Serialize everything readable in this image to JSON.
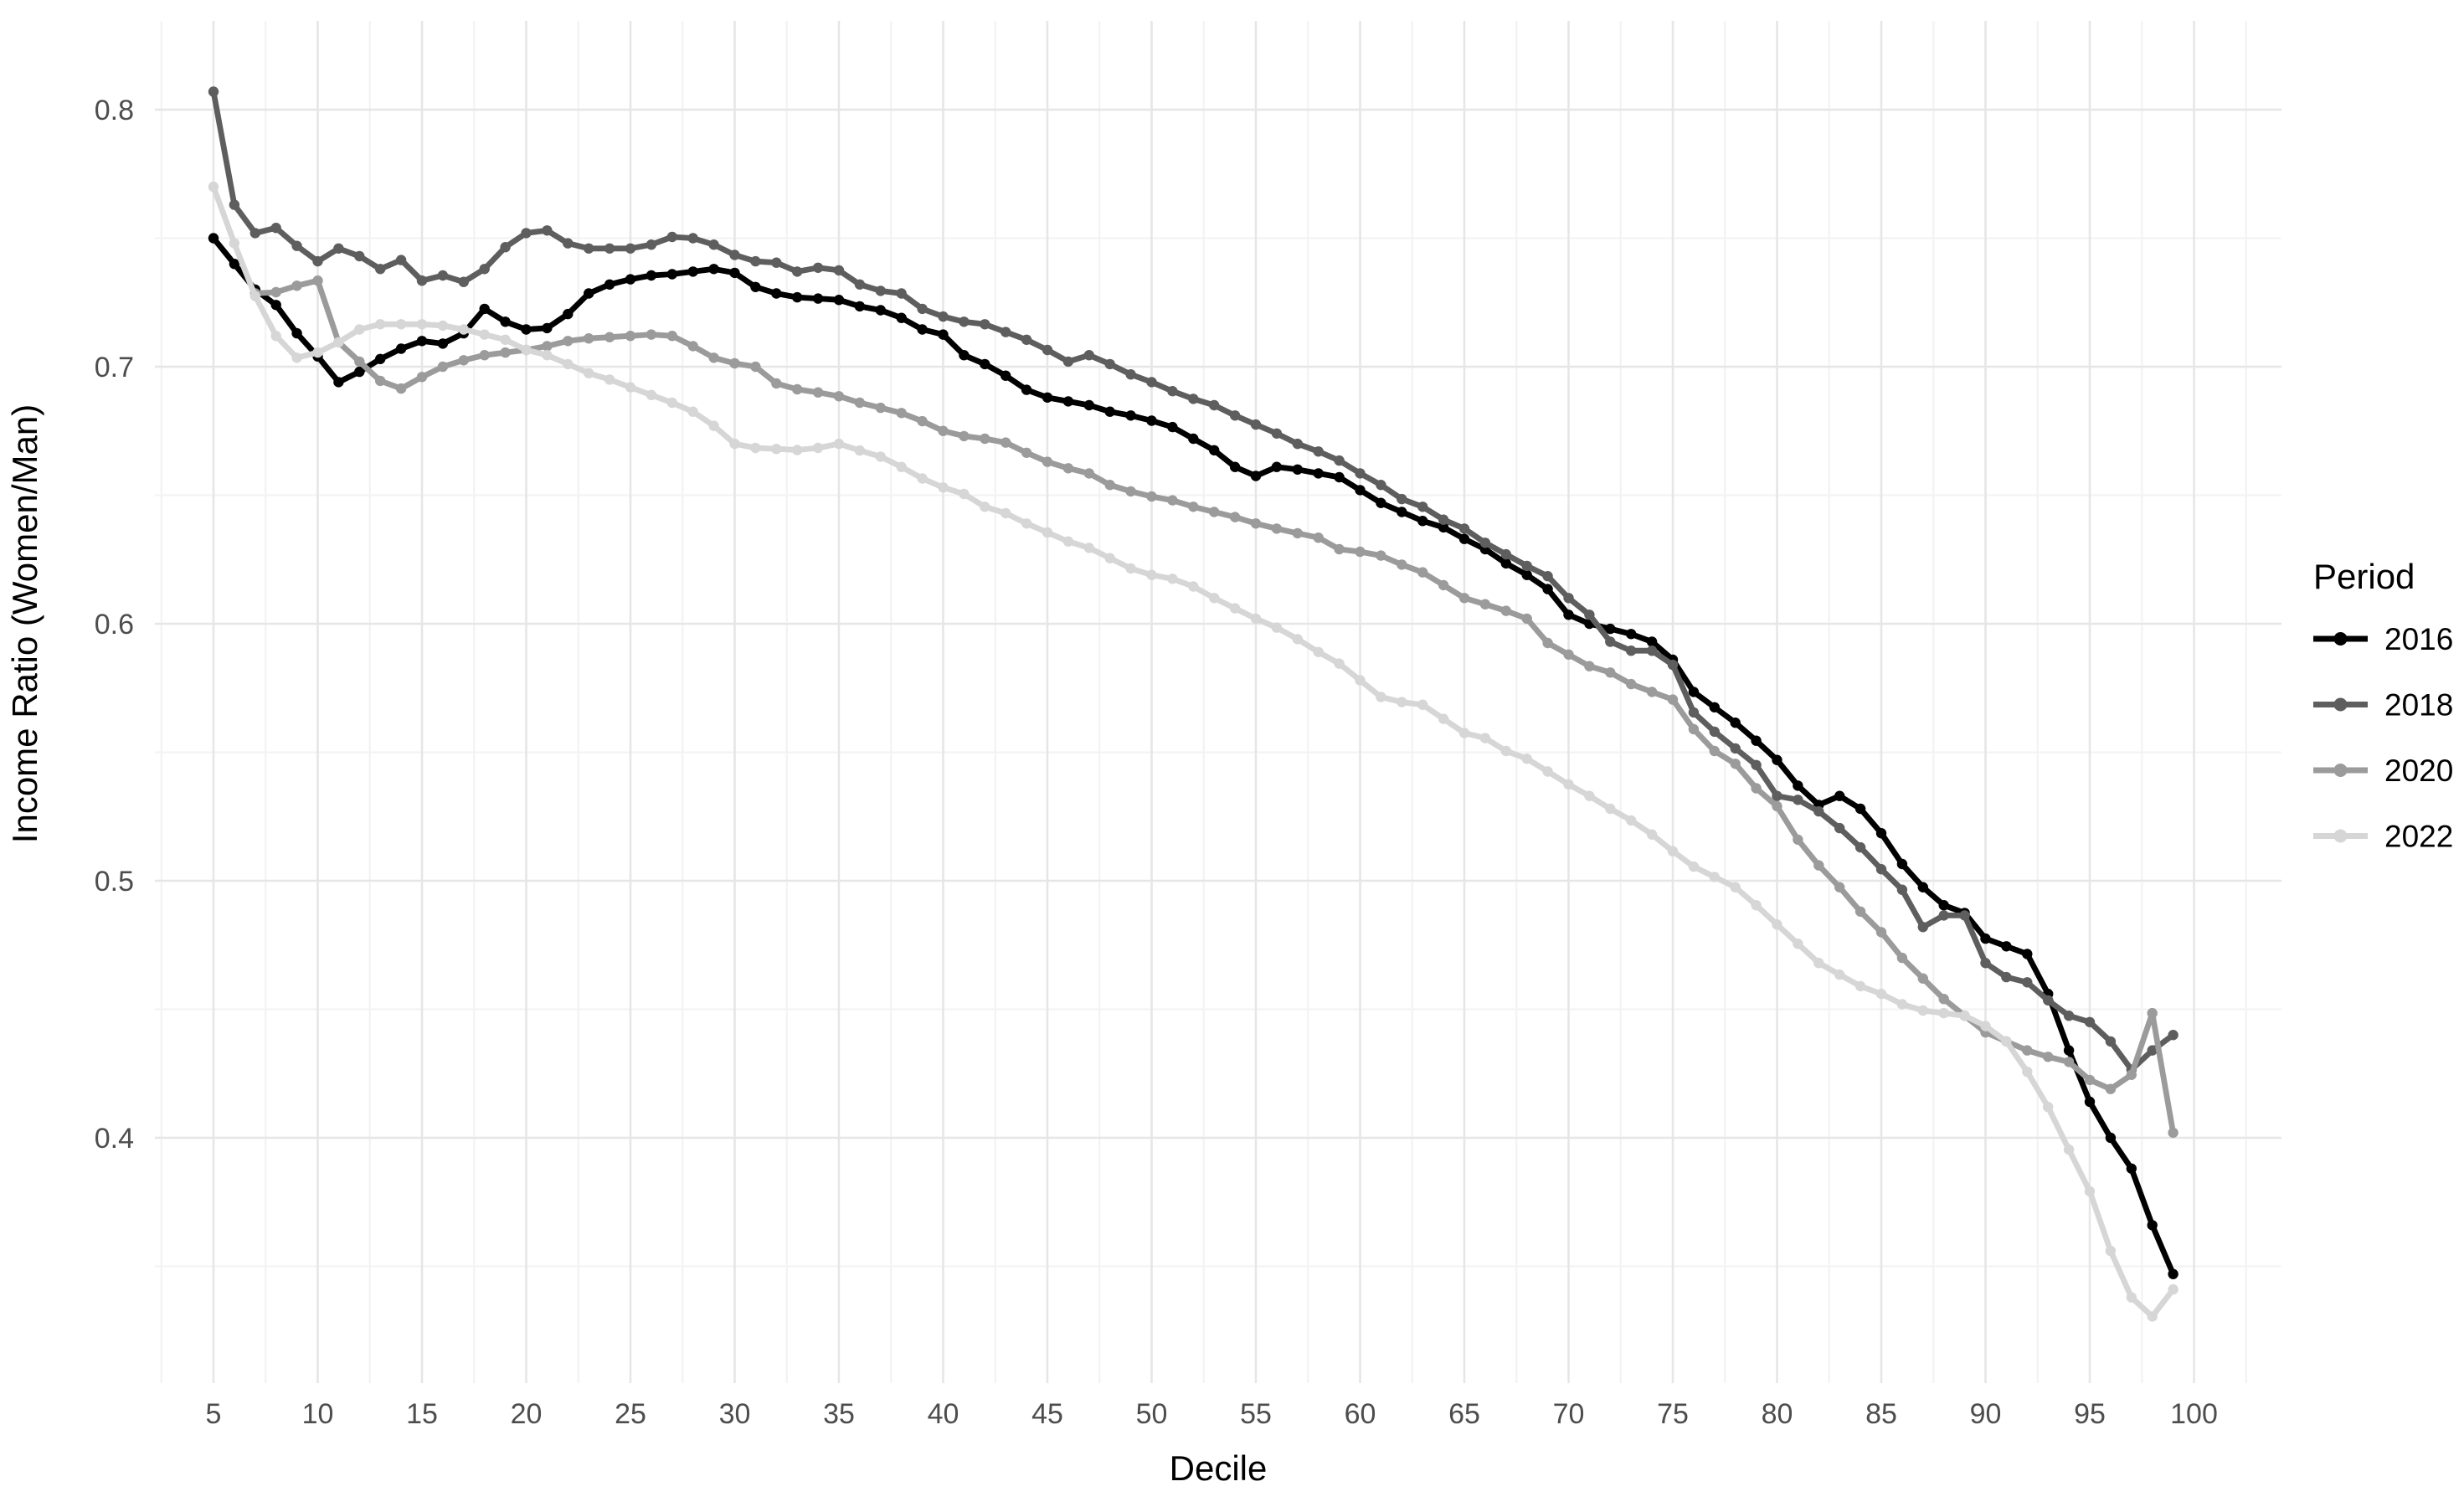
{
  "chart_data": {
    "type": "line",
    "title": "",
    "xlabel": "Decile",
    "ylabel": "Income Ratio (Women/Man)",
    "legend_title": "Period",
    "legend_position": "right",
    "grid": true,
    "xlim": [
      2.2,
      104
    ],
    "ylim": [
      0.3045,
      0.833
    ],
    "x_ticks": [
      5,
      10,
      15,
      20,
      25,
      30,
      35,
      40,
      45,
      50,
      55,
      60,
      65,
      70,
      75,
      80,
      85,
      90,
      95,
      100
    ],
    "y_ticks": [
      0.4,
      0.5,
      0.6,
      0.7,
      0.8
    ],
    "y_tick_labels": [
      "0.4",
      "0.5",
      "0.6",
      "0.7",
      "0.8"
    ],
    "x_minor_ticks": [
      2.5,
      7.5,
      12.5,
      17.5,
      22.5,
      27.5,
      32.5,
      37.5,
      42.5,
      47.5,
      52.5,
      57.5,
      62.5,
      67.5,
      72.5,
      77.5,
      82.5,
      87.5,
      92.5,
      97.5,
      102.5
    ],
    "y_minor_ticks": [
      0.35,
      0.45,
      0.55,
      0.65,
      0.75
    ],
    "x": [
      5,
      6,
      7,
      8,
      9,
      10,
      11,
      12,
      13,
      14,
      15,
      16,
      17,
      18,
      19,
      20,
      21,
      22,
      23,
      24,
      25,
      26,
      27,
      28,
      29,
      30,
      31,
      32,
      33,
      34,
      35,
      36,
      37,
      38,
      39,
      40,
      41,
      42,
      43,
      44,
      45,
      46,
      47,
      48,
      49,
      50,
      51,
      52,
      53,
      54,
      55,
      56,
      57,
      58,
      59,
      60,
      61,
      62,
      63,
      64,
      65,
      66,
      67,
      68,
      69,
      70,
      71,
      72,
      73,
      74,
      75,
      76,
      77,
      78,
      79,
      80,
      81,
      82,
      83,
      84,
      85,
      86,
      87,
      88,
      89,
      90,
      91,
      92,
      93,
      94,
      95,
      96,
      97,
      98,
      99
    ],
    "series": [
      {
        "name": "2016",
        "color": "#000000",
        "values": [
          0.75,
          0.74,
          0.73,
          0.724,
          0.713,
          0.704,
          0.694,
          0.698,
          0.703,
          0.707,
          0.71,
          0.709,
          0.713,
          0.7225,
          0.7175,
          0.7145,
          0.715,
          0.7205,
          0.7285,
          0.732,
          0.734,
          0.7355,
          0.736,
          0.737,
          0.738,
          0.7365,
          0.731,
          0.7285,
          0.727,
          0.7265,
          0.726,
          0.7235,
          0.722,
          0.719,
          0.7145,
          0.7125,
          0.7045,
          0.701,
          0.6965,
          0.691,
          0.688,
          0.6865,
          0.685,
          0.6825,
          0.681,
          0.679,
          0.6765,
          0.672,
          0.6675,
          0.661,
          0.6575,
          0.661,
          0.66,
          0.6585,
          0.657,
          0.652,
          0.647,
          0.6435,
          0.64,
          0.6375,
          0.633,
          0.629,
          0.6235,
          0.619,
          0.6135,
          0.6035,
          0.6,
          0.598,
          0.596,
          0.593,
          0.586,
          0.5735,
          0.5675,
          0.5615,
          0.5545,
          0.547,
          0.537,
          0.5295,
          0.533,
          0.528,
          0.5185,
          0.5065,
          0.4975,
          0.4905,
          0.4875,
          0.4775,
          0.4745,
          0.4715,
          0.456,
          0.434,
          0.414,
          0.4,
          0.388,
          0.366,
          0.347
        ]
      },
      {
        "name": "2018",
        "color": "#5e5e5e",
        "values": [
          0.807,
          0.763,
          0.752,
          0.754,
          0.747,
          0.741,
          0.746,
          0.743,
          0.738,
          0.7415,
          0.7335,
          0.7355,
          0.733,
          0.738,
          0.7465,
          0.752,
          0.753,
          0.748,
          0.746,
          0.746,
          0.746,
          0.7475,
          0.7505,
          0.75,
          0.7475,
          0.7435,
          0.741,
          0.7405,
          0.737,
          0.7385,
          0.7375,
          0.732,
          0.7295,
          0.7285,
          0.7225,
          0.7195,
          0.7175,
          0.7165,
          0.7135,
          0.7105,
          0.7065,
          0.702,
          0.7045,
          0.701,
          0.697,
          0.694,
          0.6905,
          0.6875,
          0.685,
          0.681,
          0.6775,
          0.674,
          0.67,
          0.667,
          0.6635,
          0.6585,
          0.654,
          0.6485,
          0.6455,
          0.6405,
          0.637,
          0.6315,
          0.627,
          0.6225,
          0.6185,
          0.61,
          0.6035,
          0.593,
          0.5895,
          0.5895,
          0.584,
          0.5655,
          0.558,
          0.5515,
          0.545,
          0.533,
          0.5315,
          0.527,
          0.5205,
          0.513,
          0.5045,
          0.4965,
          0.482,
          0.4865,
          0.4865,
          0.468,
          0.4625,
          0.4605,
          0.4535,
          0.4475,
          0.445,
          0.4375,
          0.4265,
          0.434,
          0.44
        ]
      },
      {
        "name": "2020",
        "color": "#9b9b9b",
        "values": [
          null,
          null,
          0.7285,
          0.729,
          0.7315,
          0.7335,
          0.7095,
          0.702,
          0.6945,
          0.6915,
          0.696,
          0.7,
          0.7025,
          0.7045,
          0.7055,
          0.7065,
          0.708,
          0.71,
          0.711,
          0.7115,
          0.712,
          0.7125,
          0.712,
          0.708,
          0.7035,
          0.7013,
          0.7,
          0.6935,
          0.6912,
          0.69,
          0.6885,
          0.686,
          0.684,
          0.682,
          0.6788,
          0.675,
          0.673,
          0.672,
          0.6705,
          0.6665,
          0.663,
          0.6605,
          0.6585,
          0.654,
          0.6515,
          0.6495,
          0.648,
          0.6455,
          0.6435,
          0.6415,
          0.639,
          0.637,
          0.6352,
          0.6335,
          0.629,
          0.628,
          0.6265,
          0.623,
          0.62,
          0.615,
          0.61,
          0.6076,
          0.605,
          0.602,
          0.5925,
          0.588,
          0.5835,
          0.581,
          0.5765,
          0.5735,
          0.5705,
          0.559,
          0.5505,
          0.5455,
          0.536,
          0.529,
          0.516,
          0.506,
          0.4975,
          0.488,
          0.48,
          0.47,
          0.462,
          0.454,
          0.4475,
          0.441,
          0.4375,
          0.434,
          0.4315,
          0.4295,
          0.4225,
          0.419,
          0.4245,
          0.4485,
          0.402
        ]
      },
      {
        "name": "2022",
        "color": "#d6d6d6",
        "values": [
          0.77,
          0.748,
          0.7275,
          0.712,
          0.7035,
          0.7055,
          0.7095,
          0.7145,
          0.7165,
          0.7165,
          0.7165,
          0.716,
          0.7145,
          0.7125,
          0.7105,
          0.7065,
          0.7045,
          0.701,
          0.6975,
          0.695,
          0.692,
          0.689,
          0.686,
          0.6825,
          0.677,
          0.67,
          0.6684,
          0.668,
          0.6676,
          0.6684,
          0.67,
          0.6674,
          0.665,
          0.661,
          0.6565,
          0.653,
          0.6505,
          0.6455,
          0.643,
          0.639,
          0.6355,
          0.632,
          0.6295,
          0.6255,
          0.6215,
          0.619,
          0.6175,
          0.6145,
          0.61,
          0.606,
          0.602,
          0.5985,
          0.594,
          0.589,
          0.5845,
          0.578,
          0.5715,
          0.5695,
          0.5685,
          0.563,
          0.5575,
          0.5555,
          0.5505,
          0.5475,
          0.5425,
          0.5375,
          0.533,
          0.528,
          0.5235,
          0.518,
          0.5115,
          0.5055,
          0.5015,
          0.4975,
          0.4905,
          0.483,
          0.4755,
          0.468,
          0.4635,
          0.459,
          0.456,
          0.452,
          0.4495,
          0.4485,
          0.4475,
          0.4435,
          0.4375,
          0.4257,
          0.412,
          0.3954,
          0.3792,
          0.356,
          0.3379,
          0.3305,
          0.341
        ]
      }
    ]
  },
  "style": {
    "grid_major_color": "#e6e6e6",
    "grid_minor_color": "#f3f3f3",
    "axis_text_color": "#4d4d4d",
    "axis_title_color": "#000000",
    "legend_text_color": "#000000",
    "background": "#ffffff"
  }
}
